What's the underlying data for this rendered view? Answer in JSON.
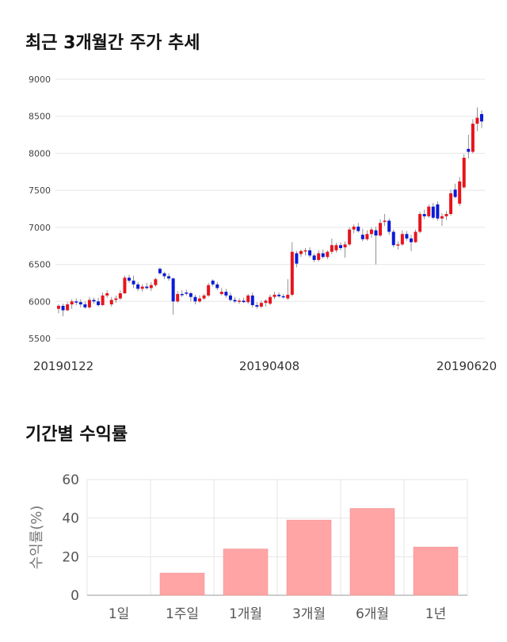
{
  "titles": {
    "candles": "최근 3개월간 주가 추세",
    "returns": "기간별 수익률"
  },
  "colors": {
    "up": "#e8141b",
    "down": "#0a1ad8",
    "bar": "#ffa5a5",
    "grid": "#e6e6e6"
  },
  "chart_data": [
    {
      "type": "candlestick",
      "title": "최근 3개월간 주가 추세",
      "ylim": [
        5500,
        9000
      ],
      "y_ticks": [
        5500,
        6000,
        6500,
        7000,
        7500,
        8000,
        8500,
        9000
      ],
      "x_tick_labels": [
        "20190122",
        "20190408",
        "20190620"
      ],
      "grid": true,
      "candles": [
        {
          "o": 5900,
          "h": 5960,
          "l": 5840,
          "c": 5940
        },
        {
          "o": 5940,
          "h": 5970,
          "l": 5800,
          "c": 5880
        },
        {
          "o": 5880,
          "h": 5990,
          "l": 5870,
          "c": 5960
        },
        {
          "o": 5960,
          "h": 6030,
          "l": 5900,
          "c": 6000
        },
        {
          "o": 6000,
          "h": 6040,
          "l": 5950,
          "c": 5990
        },
        {
          "o": 5990,
          "h": 6030,
          "l": 5920,
          "c": 5960
        },
        {
          "o": 5960,
          "h": 6000,
          "l": 5900,
          "c": 5920
        },
        {
          "o": 5920,
          "h": 6060,
          "l": 5900,
          "c": 6020
        },
        {
          "o": 6020,
          "h": 6050,
          "l": 5970,
          "c": 6000
        },
        {
          "o": 6000,
          "h": 6050,
          "l": 5930,
          "c": 5950
        },
        {
          "o": 5950,
          "h": 6120,
          "l": 5940,
          "c": 6080
        },
        {
          "o": 6080,
          "h": 6150,
          "l": 6050,
          "c": 6110
        },
        {
          "o": 5960,
          "h": 6060,
          "l": 5930,
          "c": 6020
        },
        {
          "o": 6020,
          "h": 6080,
          "l": 5980,
          "c": 6040
        },
        {
          "o": 6040,
          "h": 6150,
          "l": 6020,
          "c": 6110
        },
        {
          "o": 6110,
          "h": 6350,
          "l": 6100,
          "c": 6320
        },
        {
          "o": 6320,
          "h": 6360,
          "l": 6250,
          "c": 6280
        },
        {
          "o": 6280,
          "h": 6350,
          "l": 6180,
          "c": 6230
        },
        {
          "o": 6230,
          "h": 6260,
          "l": 6140,
          "c": 6170
        },
        {
          "o": 6170,
          "h": 6230,
          "l": 6130,
          "c": 6200
        },
        {
          "o": 6200,
          "h": 6250,
          "l": 6160,
          "c": 6180
        },
        {
          "o": 6180,
          "h": 6260,
          "l": 6140,
          "c": 6220
        },
        {
          "o": 6220,
          "h": 6320,
          "l": 6200,
          "c": 6300
        },
        {
          "o": 6440,
          "h": 6460,
          "l": 6360,
          "c": 6380
        },
        {
          "o": 6380,
          "h": 6400,
          "l": 6300,
          "c": 6340
        },
        {
          "o": 6340,
          "h": 6380,
          "l": 6280,
          "c": 6310
        },
        {
          "o": 6310,
          "h": 6320,
          "l": 5820,
          "c": 6000
        },
        {
          "o": 6000,
          "h": 6140,
          "l": 5980,
          "c": 6100
        },
        {
          "o": 6100,
          "h": 6150,
          "l": 6060,
          "c": 6090
        },
        {
          "o": 6120,
          "h": 6160,
          "l": 6080,
          "c": 6110
        },
        {
          "o": 6110,
          "h": 6130,
          "l": 6000,
          "c": 6060
        },
        {
          "o": 6060,
          "h": 6090,
          "l": 5960,
          "c": 6000
        },
        {
          "o": 6000,
          "h": 6080,
          "l": 5980,
          "c": 6040
        },
        {
          "o": 6040,
          "h": 6100,
          "l": 6020,
          "c": 6080
        },
        {
          "o": 6080,
          "h": 6250,
          "l": 6060,
          "c": 6220
        },
        {
          "o": 6280,
          "h": 6300,
          "l": 6200,
          "c": 6230
        },
        {
          "o": 6230,
          "h": 6260,
          "l": 6150,
          "c": 6180
        },
        {
          "o": 6100,
          "h": 6180,
          "l": 6080,
          "c": 6130
        },
        {
          "o": 6130,
          "h": 6170,
          "l": 6050,
          "c": 6080
        },
        {
          "o": 6080,
          "h": 6120,
          "l": 6000,
          "c": 6020
        },
        {
          "o": 6020,
          "h": 6060,
          "l": 5980,
          "c": 6000
        },
        {
          "o": 6000,
          "h": 6040,
          "l": 5970,
          "c": 6010
        },
        {
          "o": 6010,
          "h": 6050,
          "l": 5980,
          "c": 5990
        },
        {
          "o": 5990,
          "h": 6100,
          "l": 5970,
          "c": 6080
        },
        {
          "o": 6080,
          "h": 6120,
          "l": 5920,
          "c": 5950
        },
        {
          "o": 5950,
          "h": 5990,
          "l": 5900,
          "c": 5930
        },
        {
          "o": 5930,
          "h": 6010,
          "l": 5910,
          "c": 5980
        },
        {
          "o": 5980,
          "h": 6030,
          "l": 5930,
          "c": 6010
        },
        {
          "o": 5970,
          "h": 6090,
          "l": 5950,
          "c": 6060
        },
        {
          "o": 6060,
          "h": 6130,
          "l": 6030,
          "c": 6090
        },
        {
          "o": 6090,
          "h": 6120,
          "l": 6050,
          "c": 6070
        },
        {
          "o": 6070,
          "h": 6100,
          "l": 6040,
          "c": 6060
        },
        {
          "o": 6040,
          "h": 6300,
          "l": 6020,
          "c": 6090
        },
        {
          "o": 6090,
          "h": 6800,
          "l": 6070,
          "c": 6670
        },
        {
          "o": 6650,
          "h": 6680,
          "l": 6460,
          "c": 6510
        },
        {
          "o": 6640,
          "h": 6700,
          "l": 6600,
          "c": 6680
        },
        {
          "o": 6680,
          "h": 6720,
          "l": 6620,
          "c": 6690
        },
        {
          "o": 6690,
          "h": 6730,
          "l": 6590,
          "c": 6620
        },
        {
          "o": 6620,
          "h": 6650,
          "l": 6530,
          "c": 6560
        },
        {
          "o": 6560,
          "h": 6690,
          "l": 6540,
          "c": 6650
        },
        {
          "o": 6650,
          "h": 6700,
          "l": 6580,
          "c": 6600
        },
        {
          "o": 6600,
          "h": 6690,
          "l": 6570,
          "c": 6670
        },
        {
          "o": 6670,
          "h": 6850,
          "l": 6640,
          "c": 6760
        },
        {
          "o": 6690,
          "h": 6790,
          "l": 6660,
          "c": 6760
        },
        {
          "o": 6760,
          "h": 6800,
          "l": 6690,
          "c": 6720
        },
        {
          "o": 6730,
          "h": 6810,
          "l": 6590,
          "c": 6770
        },
        {
          "o": 6770,
          "h": 7000,
          "l": 6750,
          "c": 6970
        },
        {
          "o": 6970,
          "h": 7040,
          "l": 6920,
          "c": 7010
        },
        {
          "o": 7010,
          "h": 7060,
          "l": 6930,
          "c": 6950
        },
        {
          "o": 6900,
          "h": 6980,
          "l": 6810,
          "c": 6840
        },
        {
          "o": 6840,
          "h": 6960,
          "l": 6820,
          "c": 6910
        },
        {
          "o": 6910,
          "h": 7000,
          "l": 6860,
          "c": 6970
        },
        {
          "o": 6960,
          "h": 7010,
          "l": 6500,
          "c": 6890
        },
        {
          "o": 6890,
          "h": 7110,
          "l": 6870,
          "c": 7060
        },
        {
          "o": 7080,
          "h": 7180,
          "l": 7020,
          "c": 7090
        },
        {
          "o": 7090,
          "h": 7120,
          "l": 6900,
          "c": 6940
        },
        {
          "o": 6940,
          "h": 6970,
          "l": 6730,
          "c": 6760
        },
        {
          "o": 6760,
          "h": 6810,
          "l": 6700,
          "c": 6770
        },
        {
          "o": 6770,
          "h": 6960,
          "l": 6750,
          "c": 6910
        },
        {
          "o": 6910,
          "h": 6950,
          "l": 6820,
          "c": 6850
        },
        {
          "o": 6850,
          "h": 6900,
          "l": 6680,
          "c": 6800
        },
        {
          "o": 6800,
          "h": 6970,
          "l": 6790,
          "c": 6940
        },
        {
          "o": 6940,
          "h": 7210,
          "l": 6920,
          "c": 7180
        },
        {
          "o": 7180,
          "h": 7240,
          "l": 7110,
          "c": 7150
        },
        {
          "o": 7150,
          "h": 7310,
          "l": 7130,
          "c": 7280
        },
        {
          "o": 7280,
          "h": 7330,
          "l": 7110,
          "c": 7130
        },
        {
          "o": 7310,
          "h": 7350,
          "l": 7090,
          "c": 7120
        },
        {
          "o": 7120,
          "h": 7190,
          "l": 7020,
          "c": 7150
        },
        {
          "o": 7150,
          "h": 7220,
          "l": 7100,
          "c": 7180
        },
        {
          "o": 7180,
          "h": 7510,
          "l": 7160,
          "c": 7460
        },
        {
          "o": 7510,
          "h": 7590,
          "l": 7390,
          "c": 7410
        },
        {
          "o": 7320,
          "h": 7680,
          "l": 7290,
          "c": 7620
        },
        {
          "o": 7540,
          "h": 7990,
          "l": 7520,
          "c": 7940
        },
        {
          "o": 8060,
          "h": 8250,
          "l": 7930,
          "c": 8020
        },
        {
          "o": 8020,
          "h": 8460,
          "l": 8000,
          "c": 8400
        },
        {
          "o": 8400,
          "h": 8620,
          "l": 8300,
          "c": 8480
        },
        {
          "o": 8530,
          "h": 8580,
          "l": 8340,
          "c": 8430
        }
      ]
    },
    {
      "type": "bar",
      "title": "기간별 수익률",
      "ylabel": "수익률(%)",
      "categories": [
        "1일",
        "1주일",
        "1개월",
        "3개월",
        "6개월",
        "1년"
      ],
      "values": [
        0,
        11.5,
        24,
        39,
        45,
        25
      ],
      "ylim": [
        0,
        60
      ],
      "y_ticks": [
        0,
        20,
        40,
        60
      ],
      "grid": true
    }
  ]
}
